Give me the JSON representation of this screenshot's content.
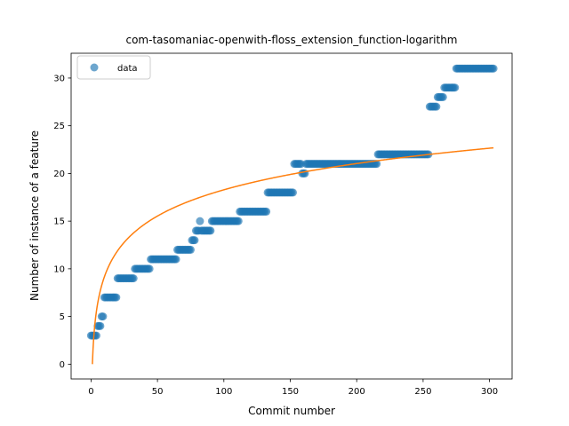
{
  "chart_data": {
    "type": "scatter",
    "title": "com-tasomaniac-openwith-floss_extension_function-logarithm",
    "xlabel": "Commit number",
    "ylabel": "Number of instance of a feature",
    "xlim": [
      -15,
      317
    ],
    "ylim": [
      -1.55,
      32.6
    ],
    "xticks": [
      0,
      50,
      100,
      150,
      200,
      250,
      300
    ],
    "yticks": [
      0,
      5,
      10,
      15,
      20,
      25,
      30
    ],
    "grid": false,
    "legend": {
      "placement": "upper-left",
      "entries": [
        "data"
      ]
    },
    "colors": {
      "data": "#1f77b4",
      "fit": "#ff7f0e"
    },
    "series": [
      {
        "name": "data",
        "kind": "scatter",
        "segments": [
          {
            "from": 0,
            "to": 4,
            "y": 3
          },
          {
            "from": 5,
            "to": 7,
            "y": 4
          },
          {
            "from": 8,
            "to": 9,
            "y": 5
          },
          {
            "from": 10,
            "to": 19,
            "y": 7
          },
          {
            "from": 20,
            "to": 32,
            "y": 9
          },
          {
            "from": 33,
            "to": 44,
            "y": 10
          },
          {
            "from": 45,
            "to": 64,
            "y": 11
          },
          {
            "from": 65,
            "to": 75,
            "y": 12
          },
          {
            "from": 76,
            "to": 78,
            "y": 13
          },
          {
            "from": 79,
            "to": 81,
            "y": 14
          },
          {
            "from": 82,
            "to": 82,
            "y": 15
          },
          {
            "from": 83,
            "to": 90,
            "y": 14
          },
          {
            "from": 91,
            "to": 111,
            "y": 15
          },
          {
            "from": 112,
            "to": 132,
            "y": 16
          },
          {
            "from": 133,
            "to": 152,
            "y": 18
          },
          {
            "from": 153,
            "to": 158,
            "y": 21
          },
          {
            "from": 159,
            "to": 161,
            "y": 20
          },
          {
            "from": 162,
            "to": 215,
            "y": 21
          },
          {
            "from": 216,
            "to": 254,
            "y": 22
          },
          {
            "from": 255,
            "to": 260,
            "y": 27
          },
          {
            "from": 261,
            "to": 265,
            "y": 28
          },
          {
            "from": 266,
            "to": 274,
            "y": 29
          },
          {
            "from": 275,
            "to": 303,
            "y": 31
          }
        ]
      },
      {
        "kind": "line",
        "function": "logarithmic",
        "a": 3.97,
        "b": 0,
        "x_range": [
          1,
          303
        ]
      }
    ]
  }
}
